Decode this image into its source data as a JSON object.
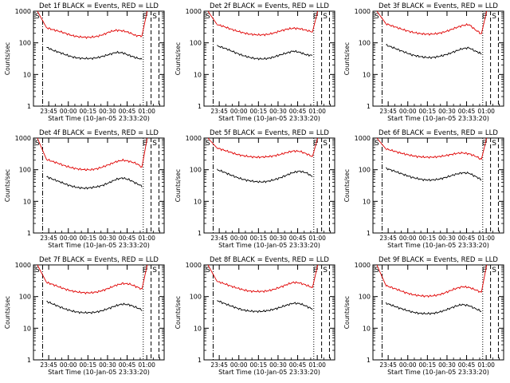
{
  "figure": {
    "background": "#ffffff",
    "series_colors": {
      "Events": "#000000",
      "LLD": "#e00000"
    }
  },
  "chart_data": [
    {
      "type": "line",
      "title": "Det 1f BLACK = Events, RED = LLD",
      "ylabel": "Counts/sec",
      "xlabel": "Start Time (10-Jan-05 23:33:20)",
      "yscale": "log",
      "ylim": [
        1,
        1000
      ],
      "yticks": [
        "1",
        "10",
        "100",
        "1000"
      ],
      "xticks": [
        "23:45",
        "00:00",
        "00:15",
        "00:30",
        "00:45",
        "01:00"
      ],
      "markers": [
        "S",
        "E",
        "S"
      ],
      "series": [
        {
          "name": "Events",
          "values": [
            72,
            58,
            50,
            42,
            36,
            33,
            32,
            32,
            34,
            38,
            44,
            50,
            48,
            40,
            34,
            30
          ]
        },
        {
          "name": "LLD",
          "values": [
            300,
            260,
            230,
            200,
            170,
            155,
            150,
            150,
            160,
            185,
            225,
            250,
            240,
            210,
            170,
            165
          ]
        }
      ]
    },
    {
      "type": "line",
      "title": "Det 2f BLACK = Events, RED = LLD",
      "ylabel": "Counts/sec",
      "xlabel": "Start Time (10-Jan-05 23:33:20)",
      "yscale": "log",
      "ylim": [
        1,
        1000
      ],
      "yticks": [
        "1",
        "10",
        "100",
        "1000"
      ],
      "xticks": [
        "23:45",
        "00:00",
        "00:15",
        "00:30",
        "00:45",
        "01:00"
      ],
      "markers": [
        "S",
        "E",
        "S"
      ],
      "series": [
        {
          "name": "Events",
          "values": [
            80,
            70,
            58,
            48,
            40,
            35,
            32,
            31,
            32,
            36,
            42,
            48,
            55,
            50,
            42,
            40
          ]
        },
        {
          "name": "LLD",
          "values": [
            380,
            330,
            280,
            240,
            210,
            190,
            180,
            178,
            185,
            205,
            240,
            270,
            290,
            280,
            250,
            220
          ]
        }
      ]
    },
    {
      "type": "line",
      "title": "Det 3f BLACK = Events, RED = LLD",
      "ylabel": "Counts/sec",
      "xlabel": "Start Time (10-Jan-05 23:33:20)",
      "yscale": "log",
      "ylim": [
        1,
        1000
      ],
      "yticks": [
        "1",
        "10",
        "100",
        "1000"
      ],
      "xticks": [
        "23:45",
        "00:00",
        "00:15",
        "00:30",
        "00:45",
        "01:00"
      ],
      "markers": [
        "S",
        "E",
        "S"
      ],
      "series": [
        {
          "name": "Events",
          "values": [
            85,
            72,
            60,
            50,
            42,
            38,
            35,
            34,
            36,
            40,
            46,
            55,
            65,
            70,
            55,
            45
          ]
        },
        {
          "name": "LLD",
          "values": [
            400,
            340,
            290,
            250,
            220,
            200,
            190,
            188,
            195,
            215,
            250,
            300,
            350,
            380,
            260,
            190
          ]
        }
      ]
    },
    {
      "type": "line",
      "title": "Det 4f BLACK = Events, RED = LLD",
      "ylabel": "Counts/sec",
      "xlabel": "Start Time (10-Jan-05 23:33:20)",
      "yscale": "log",
      "ylim": [
        1,
        1000
      ],
      "yticks": [
        "1",
        "10",
        "100",
        "1000"
      ],
      "xticks": [
        "23:45",
        "00:00",
        "00:15",
        "00:30",
        "00:45",
        "01:00"
      ],
      "markers": [
        "S",
        "E",
        "S"
      ],
      "series": [
        {
          "name": "Events",
          "values": [
            60,
            50,
            42,
            35,
            30,
            27,
            26,
            27,
            29,
            33,
            40,
            50,
            55,
            48,
            38,
            30
          ]
        },
        {
          "name": "LLD",
          "values": [
            210,
            180,
            155,
            130,
            115,
            105,
            100,
            100,
            108,
            125,
            150,
            180,
            200,
            185,
            160,
            120
          ]
        }
      ]
    },
    {
      "type": "line",
      "title": "Det 5f BLACK = Events, RED = LLD",
      "ylabel": "Counts/sec",
      "xlabel": "Start Time (10-Jan-05 23:33:20)",
      "yscale": "log",
      "ylim": [
        1,
        1000
      ],
      "yticks": [
        "1",
        "10",
        "100",
        "1000"
      ],
      "xticks": [
        "23:45",
        "00:00",
        "00:15",
        "00:30",
        "00:45",
        "01:00"
      ],
      "markers": [
        "S",
        "E",
        "S"
      ],
      "series": [
        {
          "name": "Events",
          "values": [
            100,
            85,
            70,
            58,
            50,
            45,
            42,
            41,
            43,
            48,
            56,
            68,
            82,
            90,
            80,
            60
          ]
        },
        {
          "name": "LLD",
          "values": [
            480,
            420,
            360,
            310,
            280,
            260,
            250,
            250,
            258,
            275,
            305,
            350,
            390,
            380,
            320,
            260
          ]
        }
      ]
    },
    {
      "type": "line",
      "title": "Det 6f BLACK = Events, RED = LLD",
      "ylabel": "Counts/sec",
      "xlabel": "Start Time (10-Jan-05 23:33:20)",
      "yscale": "log",
      "ylim": [
        1,
        1000
      ],
      "yticks": [
        "1",
        "10",
        "100",
        "1000"
      ],
      "xticks": [
        "23:45",
        "00:00",
        "00:15",
        "00:30",
        "00:45",
        "01:00"
      ],
      "markers": [
        "S",
        "E",
        "S"
      ],
      "series": [
        {
          "name": "Events",
          "values": [
            110,
            95,
            80,
            68,
            58,
            52,
            48,
            47,
            49,
            54,
            62,
            72,
            80,
            78,
            62,
            48
          ]
        },
        {
          "name": "LLD",
          "values": [
            450,
            400,
            350,
            310,
            280,
            260,
            250,
            248,
            255,
            270,
            295,
            325,
            340,
            320,
            270,
            210
          ]
        }
      ]
    },
    {
      "type": "line",
      "title": "Det 7f BLACK = Events, RED = LLD",
      "ylabel": "Counts/sec",
      "xlabel": "Start Time (10-Jan-05 23:33:20)",
      "yscale": "log",
      "ylim": [
        1,
        1000
      ],
      "yticks": [
        "1",
        "10",
        "100",
        "1000"
      ],
      "xticks": [
        "23:45",
        "00:00",
        "00:15",
        "00:30",
        "00:45",
        "01:00"
      ],
      "markers": [
        "S",
        "E",
        "S"
      ],
      "series": [
        {
          "name": "Events",
          "values": [
            70,
            58,
            48,
            40,
            35,
            32,
            31,
            31,
            33,
            37,
            44,
            52,
            58,
            55,
            46,
            38
          ]
        },
        {
          "name": "LLD",
          "values": [
            280,
            240,
            200,
            170,
            150,
            138,
            132,
            132,
            140,
            160,
            190,
            230,
            260,
            250,
            210,
            170
          ]
        }
      ]
    },
    {
      "type": "line",
      "title": "Det 8f BLACK = Events, RED = LLD",
      "ylabel": "Counts/sec",
      "xlabel": "Start Time (10-Jan-05 23:33:20)",
      "yscale": "log",
      "ylim": [
        1,
        1000
      ],
      "yticks": [
        "1",
        "10",
        "100",
        "1000"
      ],
      "xticks": [
        "23:45",
        "00:00",
        "00:15",
        "00:30",
        "00:45",
        "01:00"
      ],
      "markers": [
        "S",
        "E",
        "S"
      ],
      "series": [
        {
          "name": "Events",
          "values": [
            75,
            62,
            52,
            44,
            38,
            35,
            34,
            34,
            36,
            40,
            46,
            54,
            62,
            60,
            50,
            40
          ]
        },
        {
          "name": "LLD",
          "values": [
            300,
            260,
            220,
            190,
            165,
            150,
            145,
            145,
            152,
            170,
            200,
            240,
            280,
            270,
            230,
            190
          ]
        }
      ]
    },
    {
      "type": "line",
      "title": "Det 9f BLACK = Events, RED = LLD",
      "ylabel": "Counts/sec",
      "xlabel": "Start Time (10-Jan-05 23:33:20)",
      "yscale": "log",
      "ylim": [
        1,
        1000
      ],
      "yticks": [
        "1",
        "10",
        "100",
        "1000"
      ],
      "xticks": [
        "23:45",
        "00:00",
        "00:15",
        "00:30",
        "00:45",
        "01:00"
      ],
      "markers": [
        "S",
        "E",
        "S"
      ],
      "series": [
        {
          "name": "Events",
          "values": [
            62,
            52,
            44,
            38,
            33,
            30,
            29,
            29,
            31,
            35,
            42,
            50,
            56,
            52,
            42,
            34
          ]
        },
        {
          "name": "LLD",
          "values": [
            220,
            190,
            160,
            135,
            118,
            108,
            104,
            104,
            110,
            125,
            150,
            180,
            205,
            195,
            165,
            135
          ]
        }
      ]
    }
  ]
}
